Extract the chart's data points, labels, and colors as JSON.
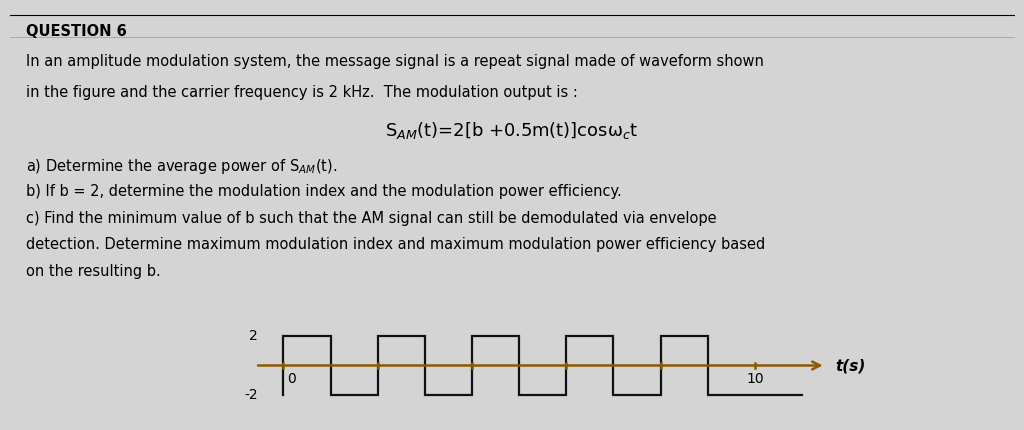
{
  "background_color": "#d4d4d4",
  "title_text": "QUESTION 6",
  "title_fontsize": 10.5,
  "body_lines": [
    "In an amplitude modulation system, the message signal is a repeat signal made of waveform shown",
    "in the figure and the carrier frequency is 2 kHz.  The modulation output is :"
  ],
  "formula": "S$_{AM}$(t)=2[b +0.5m(t)]cosω$_c$t",
  "questions": [
    "a) Determine the average power of S$_{AM}$(t).",
    "b) If b = 2, determine the modulation index and the modulation power efficiency.",
    "c) Find the minimum value of b such that the AM signal can still be demodulated via envelope",
    "detection. Determine maximum modulation index and maximum modulation power efficiency based",
    "on the resulting b."
  ],
  "waveform": {
    "t_points": [
      0,
      0,
      1,
      1,
      2,
      2,
      3,
      3,
      4,
      4,
      5,
      5,
      6,
      6,
      7,
      7,
      8,
      8,
      9,
      9,
      10,
      10,
      11
    ],
    "y_points": [
      -2,
      2,
      2,
      -2,
      -2,
      2,
      2,
      -2,
      -2,
      2,
      2,
      -2,
      -2,
      2,
      2,
      -2,
      -2,
      2,
      2,
      -2,
      -2,
      -2,
      -2
    ],
    "color": "#111111",
    "linewidth": 1.6
  },
  "axis_color": "#8B5A00",
  "xlim": [
    -0.8,
    11.8
  ],
  "ylim": [
    -3.5,
    3.5
  ],
  "tick_positions": [
    0,
    2,
    4,
    6,
    8,
    10
  ],
  "tick_height": 0.18,
  "axis_lw": 1.8,
  "fontsize_text": 10.5,
  "fontsize_formula": 13,
  "fontsize_axis": 10
}
